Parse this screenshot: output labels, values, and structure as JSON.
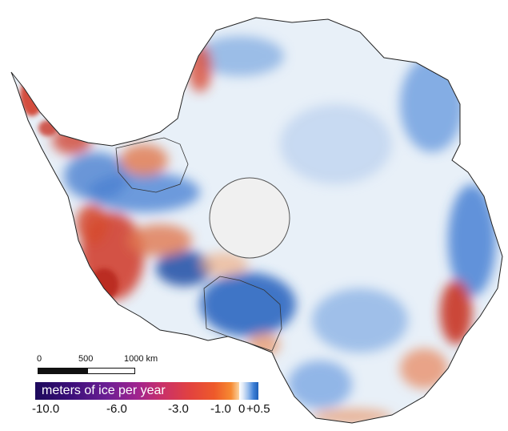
{
  "map": {
    "colors": {
      "background": "#ffffff",
      "ice_base": "#e8f0f8",
      "gain": "#4a86d6",
      "loss_mild": "#f0b48a",
      "loss_strong": "#c93a2a",
      "pole_hole": "#f0f0f0",
      "coast": "#222222"
    }
  },
  "scalebar": {
    "labels": [
      "0",
      "500",
      "1000 km"
    ]
  },
  "legend": {
    "title": "meters of ice per year",
    "ticks": [
      "-10.0",
      "-6.0",
      "-3.0",
      "-1.0",
      "0",
      "+0.5"
    ]
  }
}
